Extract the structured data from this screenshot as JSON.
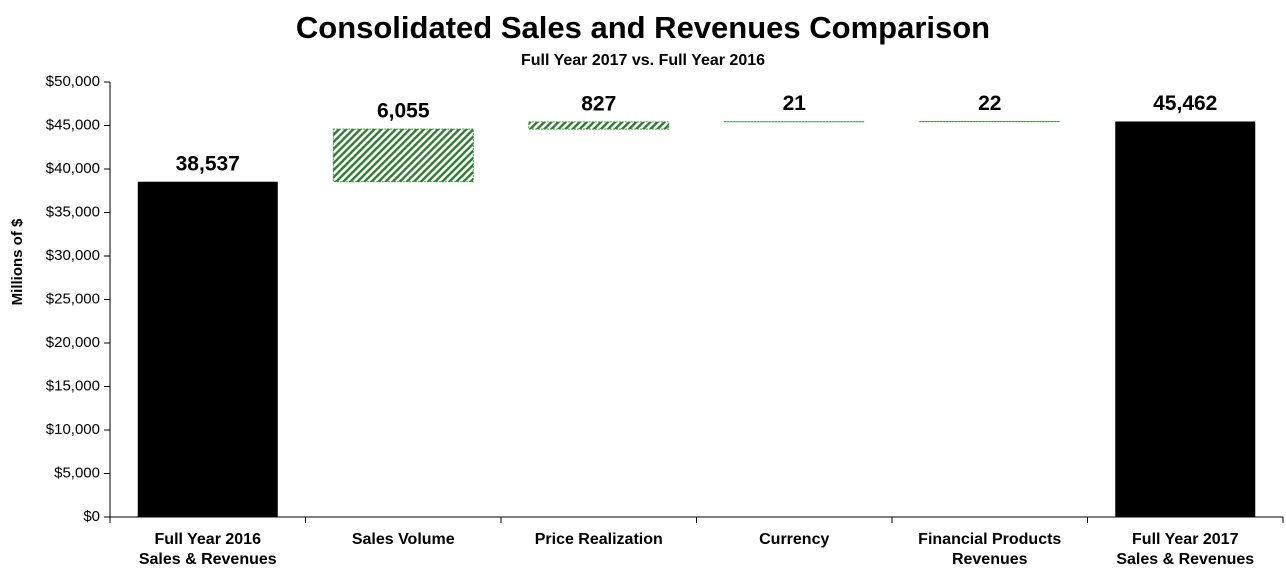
{
  "chart_data": {
    "type": "waterfall",
    "title": "Consolidated Sales and Revenues Comparison",
    "subtitle": "Full Year 2017 vs. Full Year 2016",
    "y_label": "Millions of $",
    "categories": [
      [
        "Full Year 2016",
        "Sales & Revenues"
      ],
      [
        "Sales Volume"
      ],
      [
        "Price Realization"
      ],
      [
        "Currency"
      ],
      [
        "Financial Products",
        "Revenues"
      ],
      [
        "Full Year 2017",
        "Sales & Revenues"
      ]
    ],
    "values": [
      38537,
      6055,
      827,
      21,
      22,
      45462
    ],
    "value_labels": [
      "38,537",
      "6,055",
      "827",
      "21",
      "22",
      "45,462"
    ],
    "measure": [
      "total",
      "relative",
      "relative",
      "relative",
      "relative",
      "total"
    ],
    "total_color": "#000000",
    "increase_color": "#2e7d32",
    "ylim": [
      0,
      50000
    ],
    "yticks": [
      {
        "value": 0,
        "label": "$0"
      },
      {
        "value": 5000,
        "label": "$5,000"
      },
      {
        "value": 10000,
        "label": "$10,000"
      },
      {
        "value": 15000,
        "label": "$15,000"
      },
      {
        "value": 20000,
        "label": "$20,000"
      },
      {
        "value": 25000,
        "label": "$25,000"
      },
      {
        "value": 30000,
        "label": "$30,000"
      },
      {
        "value": 35000,
        "label": "$35,000"
      },
      {
        "value": 40000,
        "label": "$40,000"
      },
      {
        "value": 45000,
        "label": "$45,000"
      },
      {
        "value": 50000,
        "label": "$50,000"
      }
    ],
    "grid": false
  }
}
